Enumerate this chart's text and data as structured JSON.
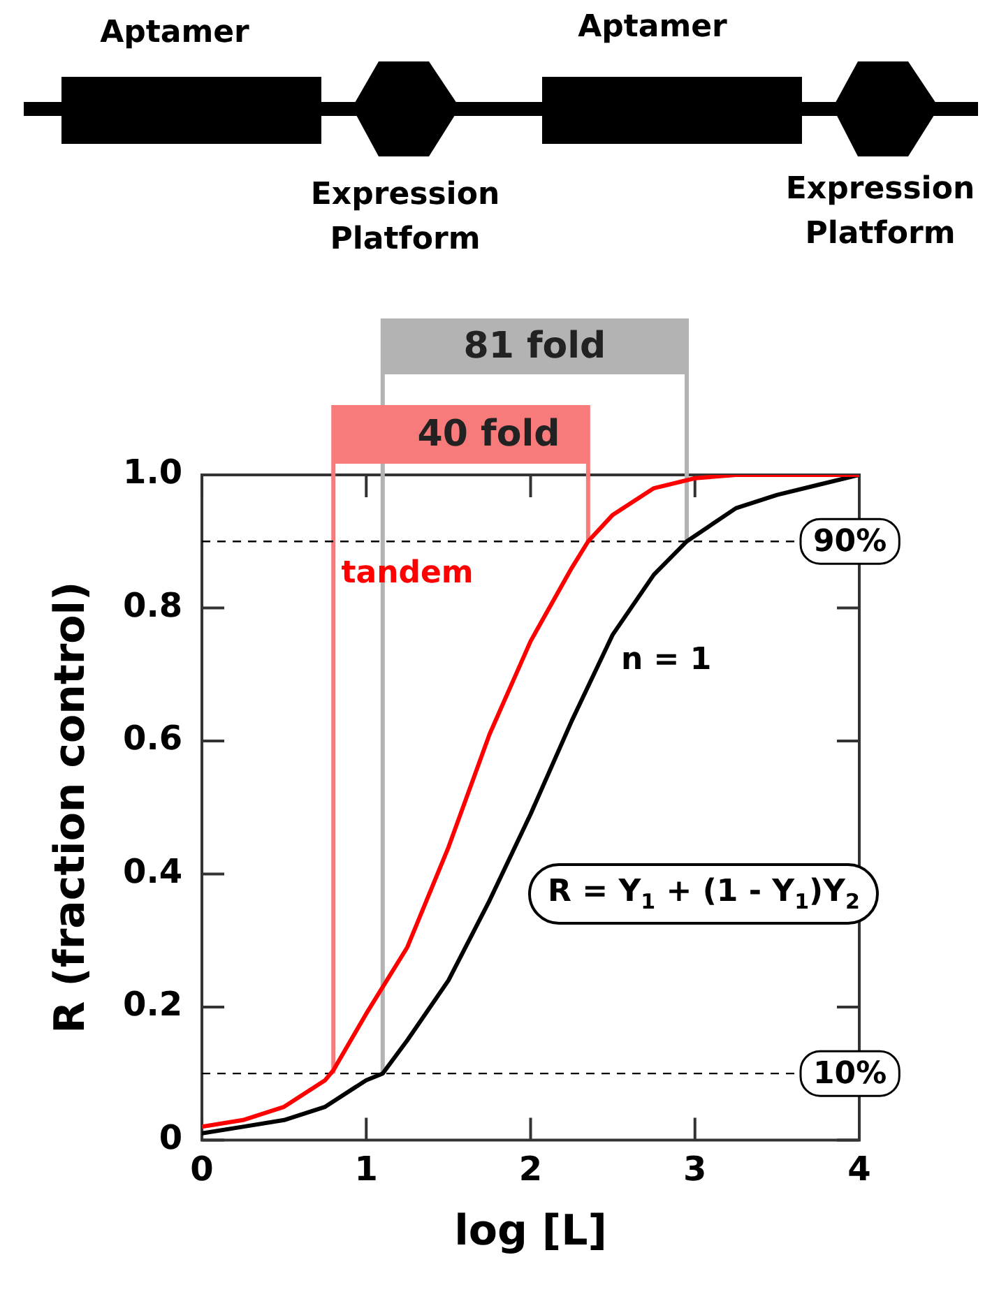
{
  "chart_data": {
    "type": "line",
    "xlabel": "log [L]",
    "ylabel": "R (fraction control)",
    "xlim": [
      0,
      4
    ],
    "ylim": [
      0,
      1
    ],
    "xticks": [
      0,
      1,
      2,
      3,
      4
    ],
    "yticks": [
      0,
      0.2,
      0.4,
      0.6,
      0.8,
      {
        "value": 1,
        "label": "1.0"
      }
    ],
    "grid": false,
    "legend": false,
    "marker": "none",
    "line_style": "solid",
    "series": [
      {
        "name": "tandem",
        "color": "#ff0000",
        "x": [
          0,
          0.25,
          0.5,
          0.75,
          0.8,
          1,
          1.25,
          1.5,
          1.75,
          2,
          2.25,
          2.35,
          2.5,
          2.75,
          3,
          3.25,
          3.5,
          4
        ],
        "values": [
          0.02,
          0.03,
          0.05,
          0.09,
          0.105,
          0.19,
          0.29,
          0.44,
          0.61,
          0.75,
          0.86,
          0.9,
          0.94,
          0.98,
          0.995,
          1,
          1,
          1
        ]
      },
      {
        "name": "n = 1",
        "color": "#000000",
        "x": [
          0,
          0.25,
          0.5,
          0.75,
          1,
          1.1,
          1.25,
          1.5,
          1.75,
          2,
          2.25,
          2.5,
          2.75,
          2.95,
          3.25,
          3.5,
          3.75,
          4
        ],
        "values": [
          0.01,
          0.02,
          0.03,
          0.05,
          0.09,
          0.1,
          0.15,
          0.24,
          0.36,
          0.49,
          0.63,
          0.76,
          0.85,
          0.9,
          0.95,
          0.97,
          0.985,
          1
        ]
      }
    ],
    "ref_lines": [
      {
        "axis": "y",
        "value": 0.9,
        "label": "90%",
        "color": "#000000",
        "line_style": "dashed"
      },
      {
        "axis": "y",
        "value": 0.1,
        "label": "10%",
        "color": "#000000",
        "line_style": "dashed"
      },
      {
        "axis": "x",
        "value": 1.1,
        "label": "81 fold",
        "color": "#b3b3b3",
        "line_style": "solid"
      },
      {
        "axis": "x",
        "value": 2.95,
        "color": "#b3b3b3",
        "line_style": "solid"
      },
      {
        "axis": "x",
        "value": 0.8,
        "label": "40 fold",
        "color": "#f77b7b",
        "line_style": "solid"
      },
      {
        "axis": "x",
        "value": 2.35,
        "color": "#f77b7b",
        "line_style": "solid"
      }
    ],
    "annotations": [
      "Aptamer",
      "Expression Platform",
      "Aptamer",
      "Expression Platform",
      "R = Y$_{1}$ + (1 - Y$_{1}$)Y$_{2}$"
    ]
  }
}
